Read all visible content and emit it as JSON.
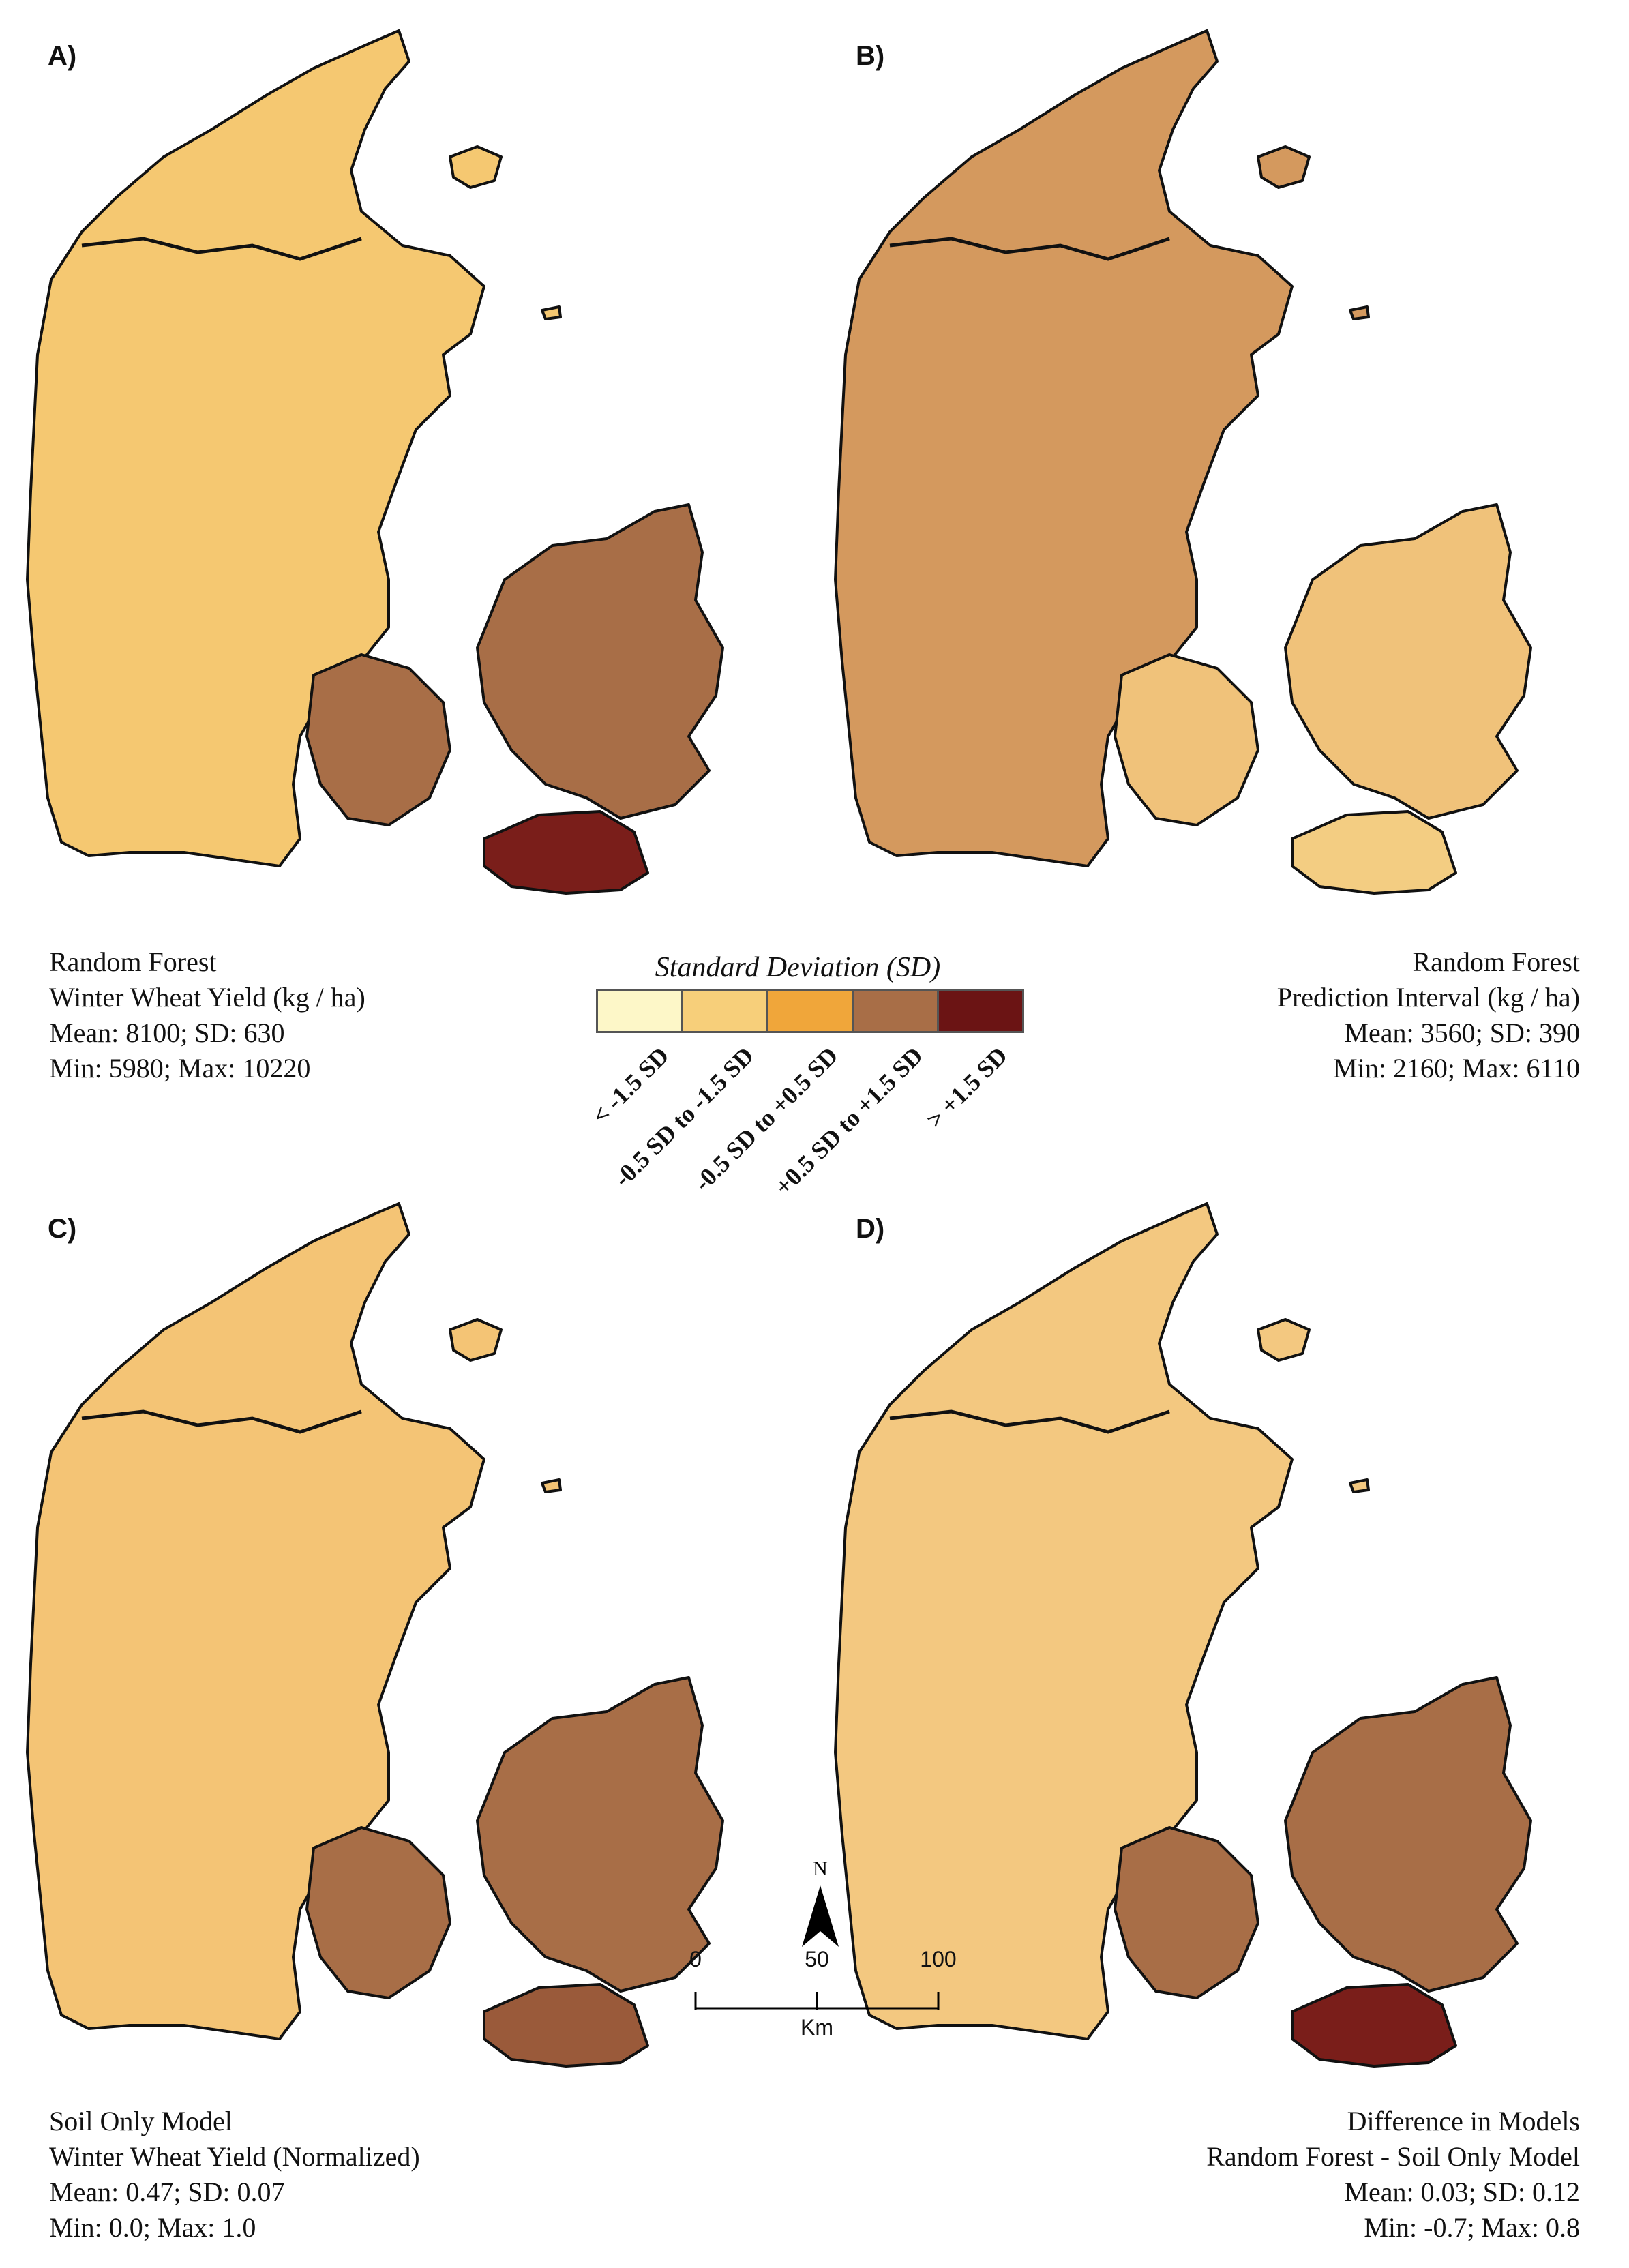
{
  "panels": [
    {
      "label": "A)",
      "fill": "#f5c871",
      "east_fill": "#a86e47",
      "lolland_fill": "#7a1e1a",
      "caption": [
        "Random Forest",
        "Winter Wheat Yield (kg / ha)",
        "Mean: 8100; SD: 630",
        "Min: 5980; Max: 10220"
      ]
    },
    {
      "label": "B)",
      "fill": "#d4995e",
      "east_fill": "#f0c27a",
      "lolland_fill": "#f3cd82",
      "caption": [
        "Random Forest",
        "Prediction Interval (kg / ha)",
        "Mean: 3560; SD: 390",
        "Min: 2160; Max: 6110"
      ]
    },
    {
      "label": "C)",
      "fill": "#f4c475",
      "east_fill": "#a86e47",
      "lolland_fill": "#9a5a3a",
      "caption": [
        "Soil Only Model",
        "Winter Wheat Yield (Normalized)",
        "Mean: 0.47; SD: 0.07",
        "Min: 0.0; Max: 1.0"
      ]
    },
    {
      "label": "D)",
      "fill": "#f3c880",
      "east_fill": "#a86e47",
      "lolland_fill": "#7a1e1a",
      "caption": [
        "Difference in Models",
        "Random Forest - Soil Only Model",
        "Mean: 0.03; SD: 0.12",
        "Min: -0.7; Max: 0.8"
      ]
    }
  ],
  "legend": {
    "title": "Standard Deviation (SD)",
    "classes": [
      {
        "label": "< -1.5 SD",
        "color": "#fdf7c8"
      },
      {
        "label": "-0.5 SD to -1.5 SD",
        "color": "#f7cf7a"
      },
      {
        "label": "-0.5 SD to +0.5 SD",
        "color": "#f0a63a"
      },
      {
        "label": "+0.5 SD to +1.5 SD",
        "color": "#a86e47"
      },
      {
        "label": "> +1.5 SD",
        "color": "#6b1414"
      }
    ]
  },
  "north_arrow": {
    "label": "N"
  },
  "scale_bar": {
    "ticks": [
      "0",
      "50",
      "100"
    ],
    "unit": "Km"
  }
}
